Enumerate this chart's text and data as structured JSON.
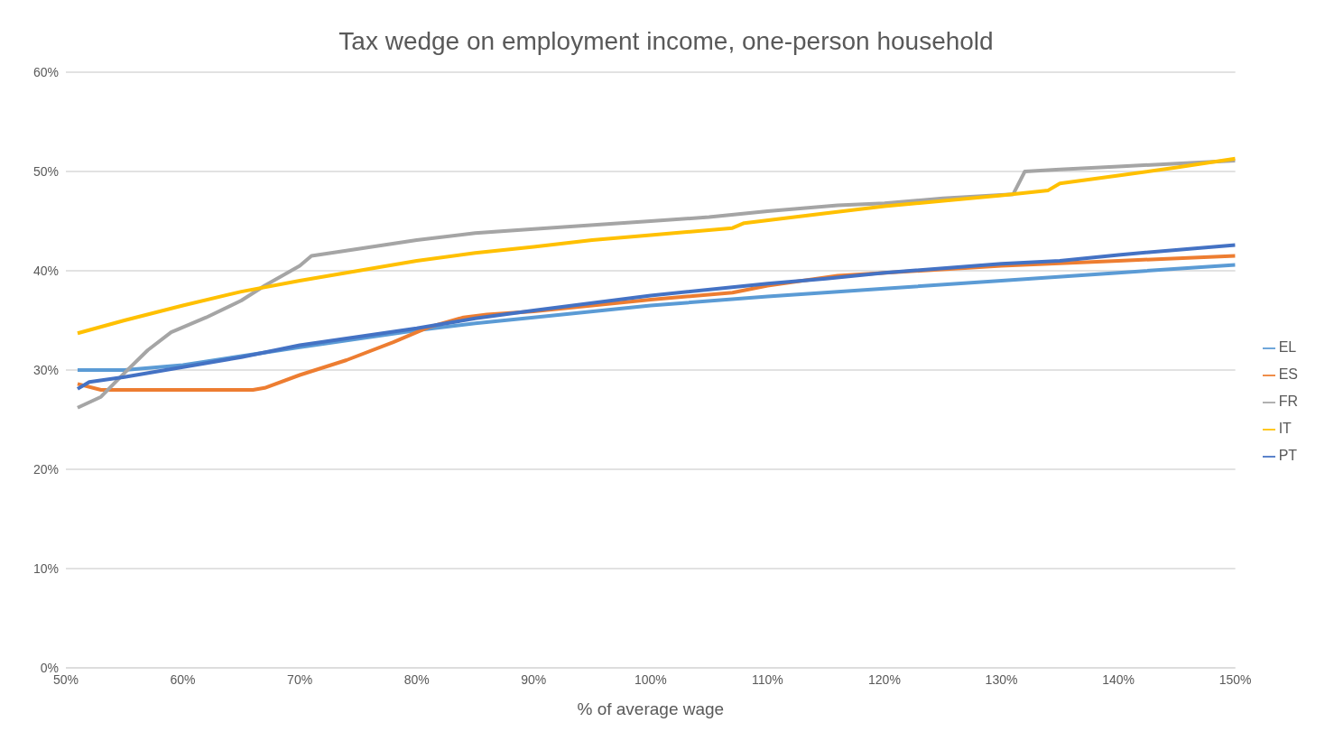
{
  "chart_data": {
    "type": "line",
    "title": "Tax wedge on employment income, one-person household",
    "xlabel": "% of average wage",
    "xlim": [
      50,
      150
    ],
    "xticks": [
      {
        "value": 50,
        "label": "50%"
      },
      {
        "value": 60,
        "label": "60%"
      },
      {
        "value": 70,
        "label": "70%"
      },
      {
        "value": 80,
        "label": "80%"
      },
      {
        "value": 90,
        "label": "90%"
      },
      {
        "value": 100,
        "label": "100%"
      },
      {
        "value": 110,
        "label": "110%"
      },
      {
        "value": 120,
        "label": "120%"
      },
      {
        "value": 130,
        "label": "130%"
      },
      {
        "value": 140,
        "label": "140%"
      },
      {
        "value": 150,
        "label": "150%"
      }
    ],
    "ylim": [
      0,
      60
    ],
    "yticks": [
      {
        "value": 0,
        "label": "0%"
      },
      {
        "value": 10,
        "label": "10%"
      },
      {
        "value": 20,
        "label": "20%"
      },
      {
        "value": 30,
        "label": "30%"
      },
      {
        "value": 40,
        "label": "40%"
      },
      {
        "value": 50,
        "label": "50%"
      },
      {
        "value": 60,
        "label": "60%"
      }
    ],
    "grid": "y",
    "legend": "right",
    "marker": "none",
    "line_style": "solid",
    "series": [
      {
        "name": "EL",
        "color": "#5b9bd5",
        "x": [
          51,
          55,
          60,
          70,
          80,
          85,
          90,
          100,
          110,
          120,
          130,
          140,
          150
        ],
        "values": [
          30.0,
          30.0,
          30.5,
          32.3,
          34.0,
          34.7,
          35.3,
          36.5,
          37.4,
          38.2,
          39.0,
          39.8,
          40.6
        ]
      },
      {
        "name": "ES",
        "color": "#ed7d31",
        "x": [
          51,
          53,
          66,
          67,
          70,
          74,
          78,
          81,
          84,
          86,
          90,
          100,
          107,
          110,
          116,
          130,
          140,
          150
        ],
        "values": [
          28.6,
          28.0,
          28.0,
          28.2,
          29.5,
          31.0,
          32.8,
          34.3,
          35.3,
          35.6,
          35.9,
          37.1,
          37.8,
          38.5,
          39.5,
          40.5,
          41.0,
          41.5
        ]
      },
      {
        "name": "FR",
        "color": "#a5a5a5",
        "x": [
          51,
          53,
          55,
          57,
          59,
          62,
          65,
          67,
          70,
          71,
          75,
          80,
          85,
          90,
          100,
          105,
          110,
          116,
          120,
          125,
          131,
          132,
          135,
          140,
          145,
          150
        ],
        "values": [
          26.2,
          27.3,
          29.7,
          32.0,
          33.8,
          35.3,
          37.0,
          38.5,
          40.5,
          41.5,
          42.2,
          43.1,
          43.8,
          44.2,
          45.0,
          45.4,
          46.0,
          46.6,
          46.8,
          47.3,
          47.7,
          50.0,
          50.2,
          50.5,
          50.8,
          51.1
        ]
      },
      {
        "name": "IT",
        "color": "#ffc000",
        "x": [
          51,
          55,
          60,
          65,
          70,
          75,
          80,
          85,
          90,
          95,
          100,
          107,
          108,
          115,
          120,
          130,
          134,
          135,
          140,
          145,
          150
        ],
        "values": [
          33.7,
          35.0,
          36.5,
          37.9,
          39.0,
          40.0,
          41.0,
          41.8,
          42.4,
          43.1,
          43.6,
          44.3,
          44.8,
          45.8,
          46.5,
          47.6,
          48.1,
          48.8,
          49.6,
          50.4,
          51.3
        ]
      },
      {
        "name": "PT",
        "color": "#4472c4",
        "x": [
          51,
          52,
          55,
          60,
          65,
          70,
          80,
          85,
          90,
          100,
          110,
          115,
          120,
          130,
          135,
          140,
          150
        ],
        "values": [
          28.1,
          28.8,
          29.3,
          30.3,
          31.3,
          32.5,
          34.2,
          35.2,
          36.0,
          37.5,
          38.7,
          39.2,
          39.8,
          40.7,
          41.0,
          41.6,
          42.6
        ]
      }
    ]
  }
}
